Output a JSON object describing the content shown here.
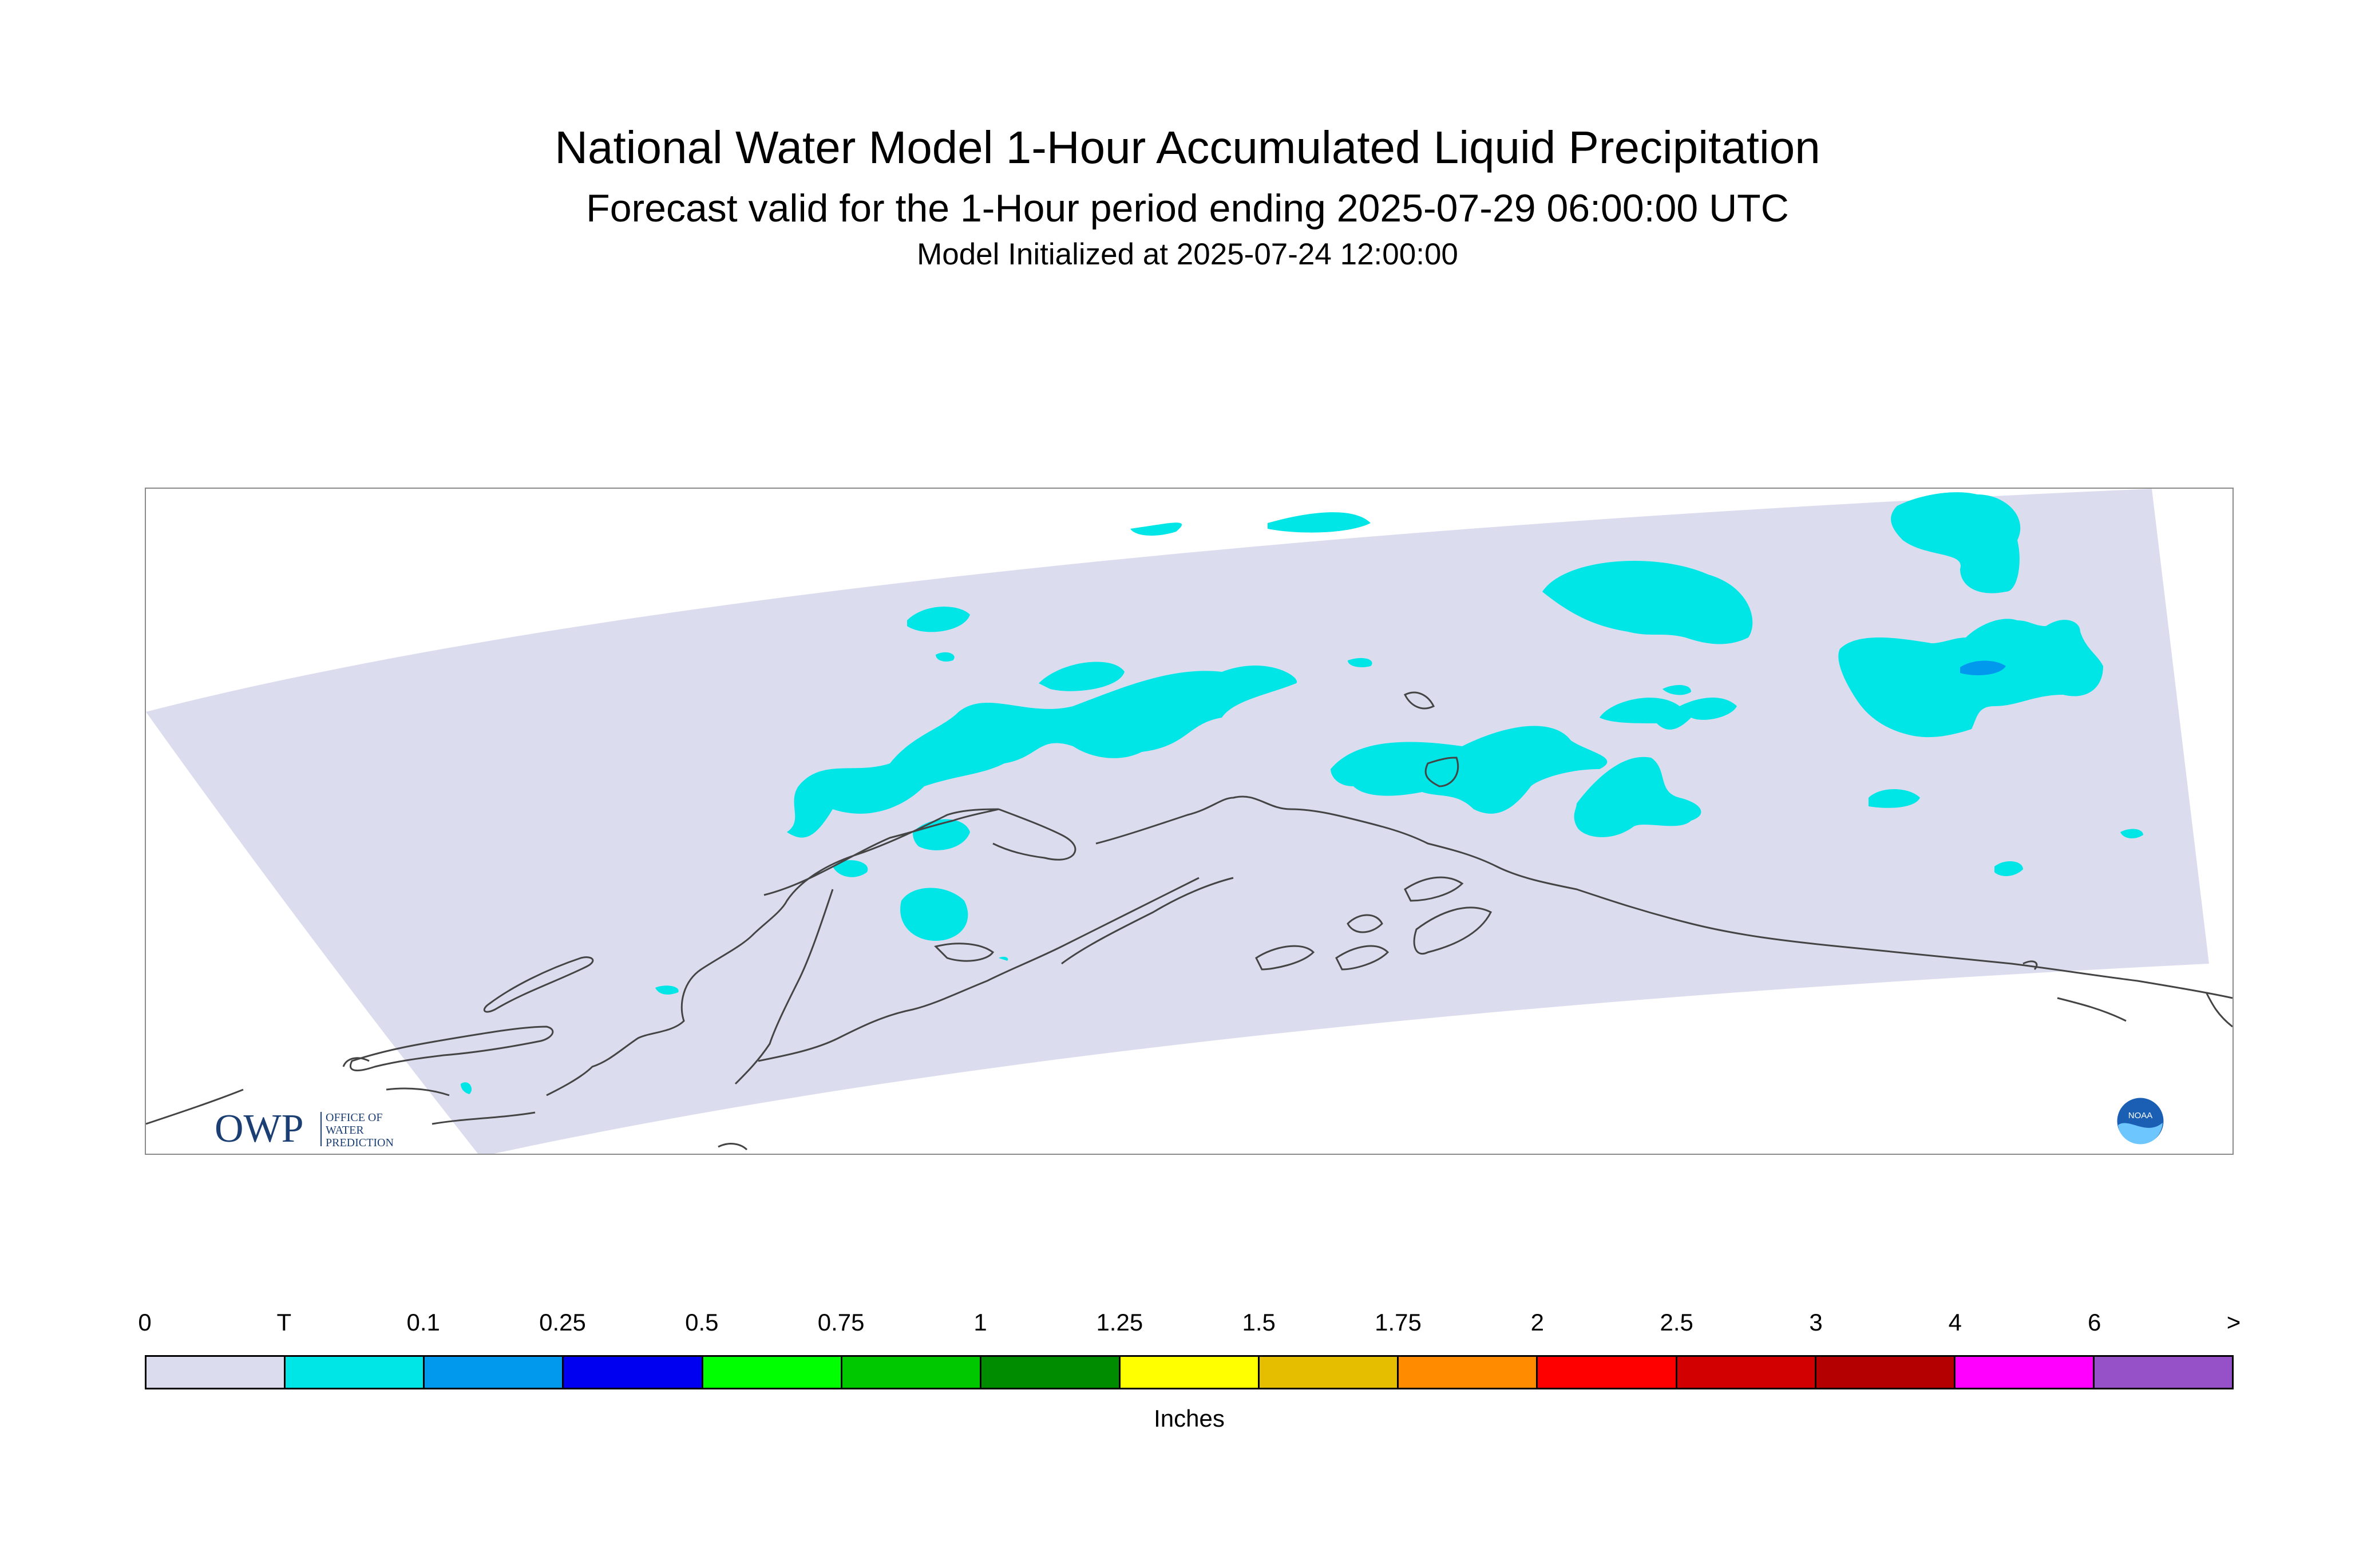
{
  "header": {
    "title": "National Water Model 1-Hour Accumulated Liquid Precipitation",
    "subtitle": "Forecast valid for the 1-Hour period ending 2025-07-29 06:00:00 UTC",
    "init_line": "Model Initialized at 2025-07-24 12:00:00"
  },
  "map": {
    "region": "Alaska",
    "domain_color": "#dcdcef",
    "trace_color": "#00e6e6",
    "light_color": "#0099ee",
    "coast_color": "#444444"
  },
  "logos": {
    "owp_mark": "OWP",
    "owp_text_1": "OFFICE OF",
    "owp_text_2": "WATER",
    "owp_text_3": "PREDICTION",
    "noaa_text": "NOAA"
  },
  "legend": {
    "unit": "Inches",
    "ticks": [
      "0",
      "T",
      "0.1",
      "0.25",
      "0.5",
      "0.75",
      "1",
      "1.25",
      "1.5",
      "1.75",
      "2",
      "2.5",
      "3",
      "4",
      "6",
      ">"
    ],
    "colors": [
      "#dcdcef",
      "#00e6e6",
      "#0099ee",
      "#0000f0",
      "#00ff00",
      "#00c800",
      "#008c00",
      "#ffff00",
      "#e6be00",
      "#ff8c00",
      "#ff0000",
      "#d20000",
      "#b40000",
      "#ff00ff",
      "#9650c8"
    ]
  }
}
